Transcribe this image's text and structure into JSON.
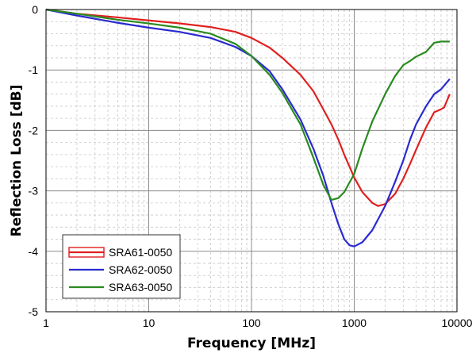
{
  "chart_data": {
    "type": "line",
    "xlabel": "Frequency [MHz]",
    "ylabel": "Reflection Loss [dB]",
    "x_scale": "log",
    "xlim": [
      1,
      10000
    ],
    "ylim": [
      -5,
      0
    ],
    "grid": true,
    "legend_position": "bottom-left",
    "x_ticks": [
      "1",
      "10",
      "100",
      "1000",
      "10000"
    ],
    "y_ticks": [
      "0",
      "-1",
      "-2",
      "-3",
      "-4",
      "-5"
    ],
    "series": [
      {
        "name": "SRA61-0050",
        "color": "#e02020",
        "points": [
          [
            1,
            0
          ],
          [
            2,
            -0.07
          ],
          [
            5,
            -0.13
          ],
          [
            10,
            -0.18
          ],
          [
            20,
            -0.23
          ],
          [
            40,
            -0.29
          ],
          [
            70,
            -0.37
          ],
          [
            100,
            -0.47
          ],
          [
            150,
            -0.63
          ],
          [
            200,
            -0.8
          ],
          [
            300,
            -1.08
          ],
          [
            400,
            -1.35
          ],
          [
            500,
            -1.65
          ],
          [
            600,
            -1.9
          ],
          [
            700,
            -2.15
          ],
          [
            800,
            -2.4
          ],
          [
            900,
            -2.6
          ],
          [
            1000,
            -2.78
          ],
          [
            1200,
            -3.02
          ],
          [
            1500,
            -3.2
          ],
          [
            1700,
            -3.25
          ],
          [
            2000,
            -3.22
          ],
          [
            2500,
            -3.05
          ],
          [
            3000,
            -2.8
          ],
          [
            3500,
            -2.55
          ],
          [
            4000,
            -2.32
          ],
          [
            5000,
            -1.95
          ],
          [
            6000,
            -1.7
          ],
          [
            7000,
            -1.65
          ],
          [
            7500,
            -1.62
          ],
          [
            8500,
            -1.4
          ]
        ]
      },
      {
        "name": "SRA62-0050",
        "color": "#2a2ad0",
        "points": [
          [
            1,
            0
          ],
          [
            2,
            -0.1
          ],
          [
            5,
            -0.22
          ],
          [
            10,
            -0.3
          ],
          [
            20,
            -0.37
          ],
          [
            40,
            -0.47
          ],
          [
            70,
            -0.62
          ],
          [
            100,
            -0.77
          ],
          [
            150,
            -1.02
          ],
          [
            200,
            -1.32
          ],
          [
            300,
            -1.82
          ],
          [
            400,
            -2.3
          ],
          [
            500,
            -2.75
          ],
          [
            600,
            -3.2
          ],
          [
            700,
            -3.55
          ],
          [
            800,
            -3.8
          ],
          [
            900,
            -3.9
          ],
          [
            1000,
            -3.92
          ],
          [
            1200,
            -3.85
          ],
          [
            1500,
            -3.65
          ],
          [
            2000,
            -3.25
          ],
          [
            2500,
            -2.85
          ],
          [
            3000,
            -2.5
          ],
          [
            3500,
            -2.15
          ],
          [
            4000,
            -1.9
          ],
          [
            5000,
            -1.6
          ],
          [
            6000,
            -1.4
          ],
          [
            7000,
            -1.32
          ],
          [
            8500,
            -1.15
          ]
        ]
      },
      {
        "name": "SRA63-0050",
        "color": "#2a8a20",
        "points": [
          [
            1,
            0
          ],
          [
            2,
            -0.07
          ],
          [
            5,
            -0.17
          ],
          [
            10,
            -0.23
          ],
          [
            20,
            -0.3
          ],
          [
            40,
            -0.4
          ],
          [
            70,
            -0.57
          ],
          [
            100,
            -0.77
          ],
          [
            150,
            -1.08
          ],
          [
            200,
            -1.38
          ],
          [
            300,
            -1.9
          ],
          [
            400,
            -2.45
          ],
          [
            500,
            -2.9
          ],
          [
            600,
            -3.15
          ],
          [
            700,
            -3.12
          ],
          [
            800,
            -3.02
          ],
          [
            1000,
            -2.72
          ],
          [
            1200,
            -2.3
          ],
          [
            1500,
            -1.85
          ],
          [
            2000,
            -1.4
          ],
          [
            2500,
            -1.1
          ],
          [
            3000,
            -0.92
          ],
          [
            3500,
            -0.85
          ],
          [
            4000,
            -0.78
          ],
          [
            5000,
            -0.7
          ],
          [
            6000,
            -0.55
          ],
          [
            7000,
            -0.53
          ],
          [
            8500,
            -0.53
          ]
        ]
      }
    ]
  }
}
